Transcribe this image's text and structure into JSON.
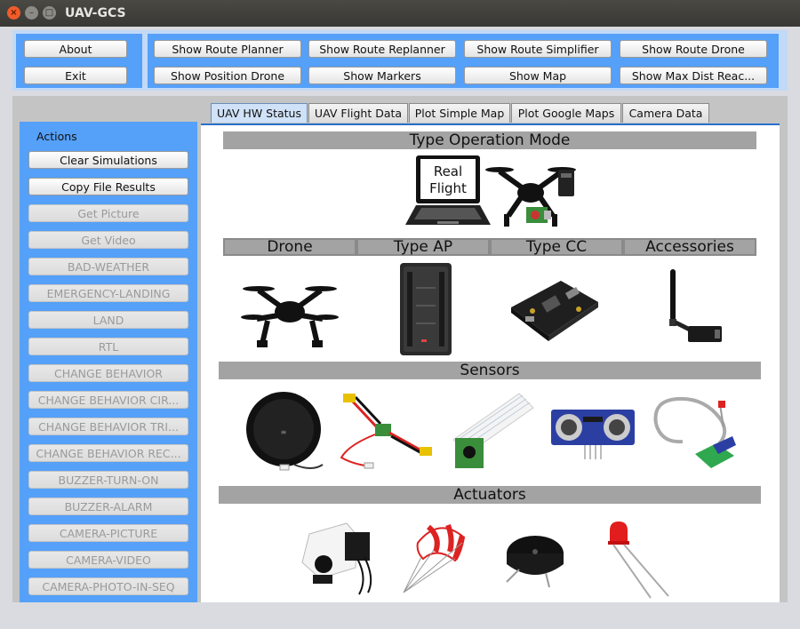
{
  "window": {
    "title": "UAV-GCS"
  },
  "top_buttons": {
    "about": "About",
    "exit": "Exit",
    "show_route_planner": "Show Route Planner",
    "show_route_replanner": "Show Route Replanner",
    "show_route_simplifier": "Show Route Simplifier",
    "show_route_drone": "Show Route Drone",
    "show_position_drone": "Show Position Drone",
    "show_markers": "Show Markers",
    "show_map": "Show Map",
    "show_max_dist": "Show Max Dist Reac..."
  },
  "sidebar": {
    "title": "Actions",
    "items": [
      {
        "label": "Clear Simulations",
        "enabled": true
      },
      {
        "label": "Copy File Results",
        "enabled": true
      },
      {
        "label": "Get Picture",
        "enabled": false
      },
      {
        "label": "Get Video",
        "enabled": false
      },
      {
        "label": "BAD-WEATHER",
        "enabled": false
      },
      {
        "label": "EMERGENCY-LANDING",
        "enabled": false
      },
      {
        "label": "LAND",
        "enabled": false
      },
      {
        "label": "RTL",
        "enabled": false
      },
      {
        "label": "CHANGE BEHAVIOR",
        "enabled": false
      },
      {
        "label": "CHANGE BEHAVIOR CIR...",
        "enabled": false
      },
      {
        "label": "CHANGE BEHAVIOR TRI...",
        "enabled": false
      },
      {
        "label": "CHANGE BEHAVIOR REC...",
        "enabled": false
      },
      {
        "label": "BUZZER-TURN-ON",
        "enabled": false
      },
      {
        "label": "BUZZER-ALARM",
        "enabled": false
      },
      {
        "label": "CAMERA-PICTURE",
        "enabled": false
      },
      {
        "label": "CAMERA-VIDEO",
        "enabled": false
      },
      {
        "label": "CAMERA-PHOTO-IN-SEQ",
        "enabled": false
      }
    ]
  },
  "tabs": [
    {
      "label": "UAV HW Status",
      "active": true
    },
    {
      "label": "UAV Flight Data",
      "active": false
    },
    {
      "label": "Plot Simple Map",
      "active": false
    },
    {
      "label": "Plot Google Maps",
      "active": false
    },
    {
      "label": "Camera Data",
      "active": false
    }
  ],
  "hw_status": {
    "operation_mode_title": "Type Operation Mode",
    "laptop_screen_line1": "Real",
    "laptop_screen_line2": "Flight",
    "columns": {
      "drone": "Drone",
      "type_ap": "Type AP",
      "type_cc": "Type CC",
      "accessories": "Accessories"
    },
    "sensors_title": "Sensors",
    "actuators_title": "Actuators"
  },
  "colors": {
    "panel_blue": "#55a0f8",
    "panel_light": "#c2d9f7",
    "section_gray": "#a3a3a3",
    "tab_active_border": "#2a6fc8"
  }
}
